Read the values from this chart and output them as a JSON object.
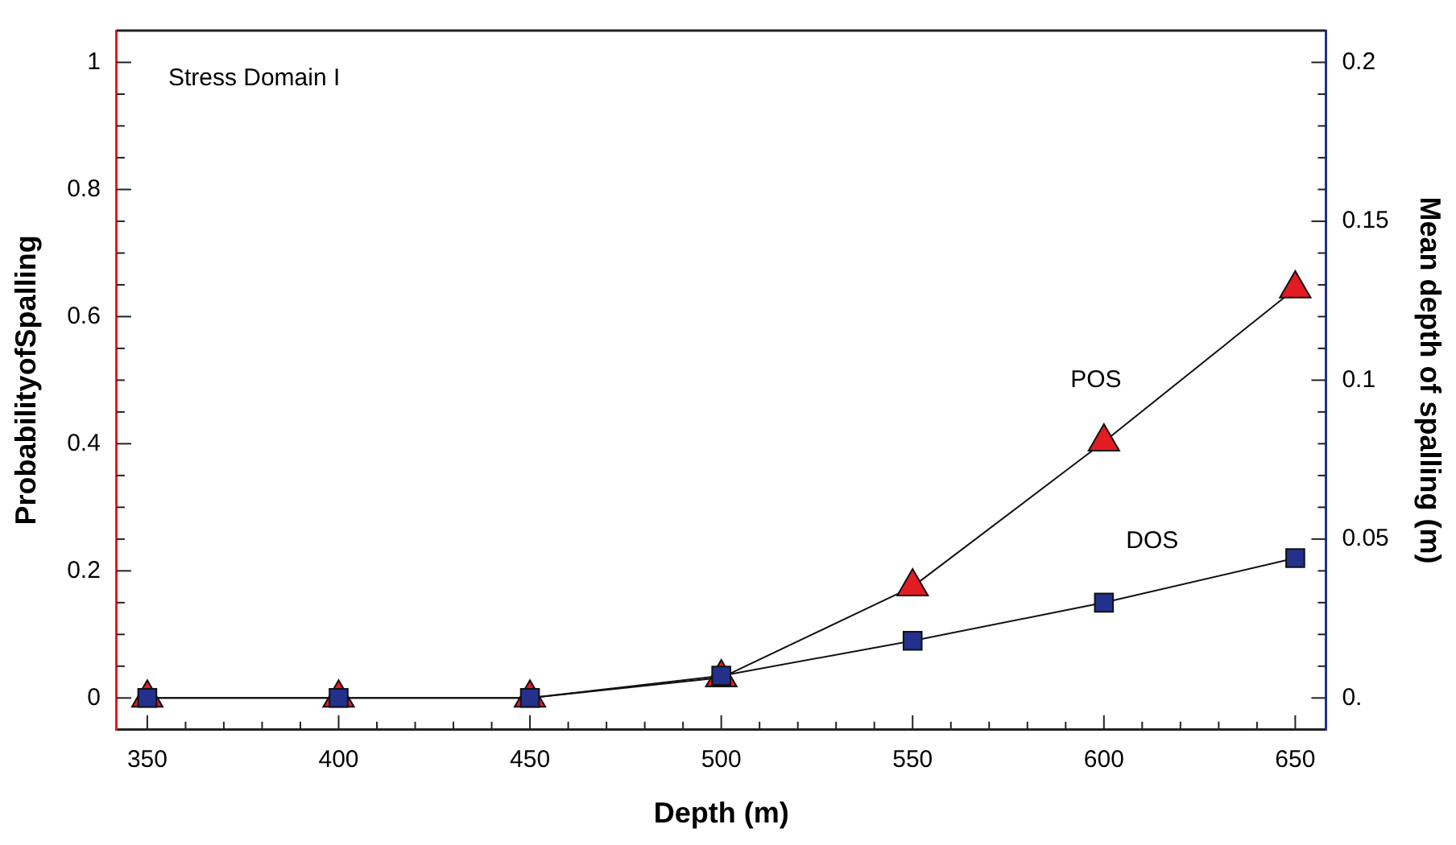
{
  "chart_data": {
    "type": "line",
    "xlabel": "Depth (m)",
    "ylabel": "ProbabilityofSpalling",
    "y2label": "Mean depth of spalling (m)",
    "annotations": [
      "Stress Domain I"
    ],
    "x": [
      350,
      400,
      450,
      500,
      550,
      600,
      650
    ],
    "series": [
      {
        "name": "POS",
        "color": "#e31b23",
        "marker": "triangle",
        "values": [
          0,
          0,
          0,
          0.032,
          0.175,
          0.403,
          0.644
        ]
      },
      {
        "name": "DOS",
        "color": "#23318c",
        "marker": "square",
        "axis": "y2",
        "values": [
          0,
          0,
          0,
          0.007,
          0.018,
          0.03,
          0.044
        ]
      }
    ],
    "xlim": [
      342,
      658
    ],
    "xticks": [
      350,
      {
        "value": 360,
        "label": null
      },
      {
        "value": 370,
        "label": null
      },
      {
        "value": 380,
        "label": null
      },
      {
        "value": 390,
        "label": null
      },
      400,
      {
        "value": 410,
        "label": null
      },
      {
        "value": 420,
        "label": null
      },
      {
        "value": 430,
        "label": null
      },
      {
        "value": 440,
        "label": null
      },
      450,
      {
        "value": 460,
        "label": null
      },
      {
        "value": 470,
        "label": null
      },
      {
        "value": 480,
        "label": null
      },
      {
        "value": 490,
        "label": null
      },
      500,
      {
        "value": 510,
        "label": null
      },
      {
        "value": 520,
        "label": null
      },
      {
        "value": 530,
        "label": null
      },
      {
        "value": 540,
        "label": null
      },
      550,
      {
        "value": 560,
        "label": null
      },
      {
        "value": 570,
        "label": null
      },
      {
        "value": 580,
        "label": null
      },
      {
        "value": 590,
        "label": null
      },
      600,
      {
        "value": 610,
        "label": null
      },
      {
        "value": 620,
        "label": null
      },
      {
        "value": 630,
        "label": null
      },
      {
        "value": 640,
        "label": null
      },
      650
    ],
    "ylim": [
      -0.05,
      1.05
    ],
    "yticks": [
      0,
      {
        "value": 0.05,
        "label": null
      },
      {
        "value": 0.1,
        "label": null
      },
      {
        "value": 0.15,
        "label": null
      },
      0.2,
      {
        "value": 0.25,
        "label": null
      },
      {
        "value": 0.3,
        "label": null
      },
      {
        "value": 0.35,
        "label": null
      },
      0.4,
      {
        "value": 0.45,
        "label": null
      },
      {
        "value": 0.5,
        "label": null
      },
      {
        "value": 0.55,
        "label": null
      },
      0.6,
      {
        "value": 0.65,
        "label": null
      },
      {
        "value": 0.7,
        "label": null
      },
      {
        "value": 0.75,
        "label": null
      },
      0.8,
      {
        "value": 0.85,
        "label": null
      },
      {
        "value": 0.9,
        "label": null
      },
      {
        "value": 0.95,
        "label": null
      },
      1
    ],
    "y2lim": [
      -0.01,
      0.21
    ],
    "y2ticks": [
      {
        "value": 0,
        "label": "0."
      },
      {
        "value": 0.01,
        "label": null
      },
      {
        "value": 0.02,
        "label": null
      },
      {
        "value": 0.03,
        "label": null
      },
      {
        "value": 0.04,
        "label": null
      },
      0.05,
      {
        "value": 0.06,
        "label": null
      },
      {
        "value": 0.07,
        "label": null
      },
      {
        "value": 0.08,
        "label": null
      },
      {
        "value": 0.09,
        "label": null
      },
      0.1,
      {
        "value": 0.11,
        "label": null
      },
      {
        "value": 0.12,
        "label": null
      },
      {
        "value": 0.13,
        "label": null
      },
      {
        "value": 0.14,
        "label": null
      },
      0.15,
      {
        "value": 0.16,
        "label": null
      },
      {
        "value": 0.17,
        "label": null
      },
      {
        "value": 0.18,
        "label": null
      },
      {
        "value": 0.19,
        "label": null
      },
      0.2
    ],
    "grid": false,
    "legend": false
  }
}
